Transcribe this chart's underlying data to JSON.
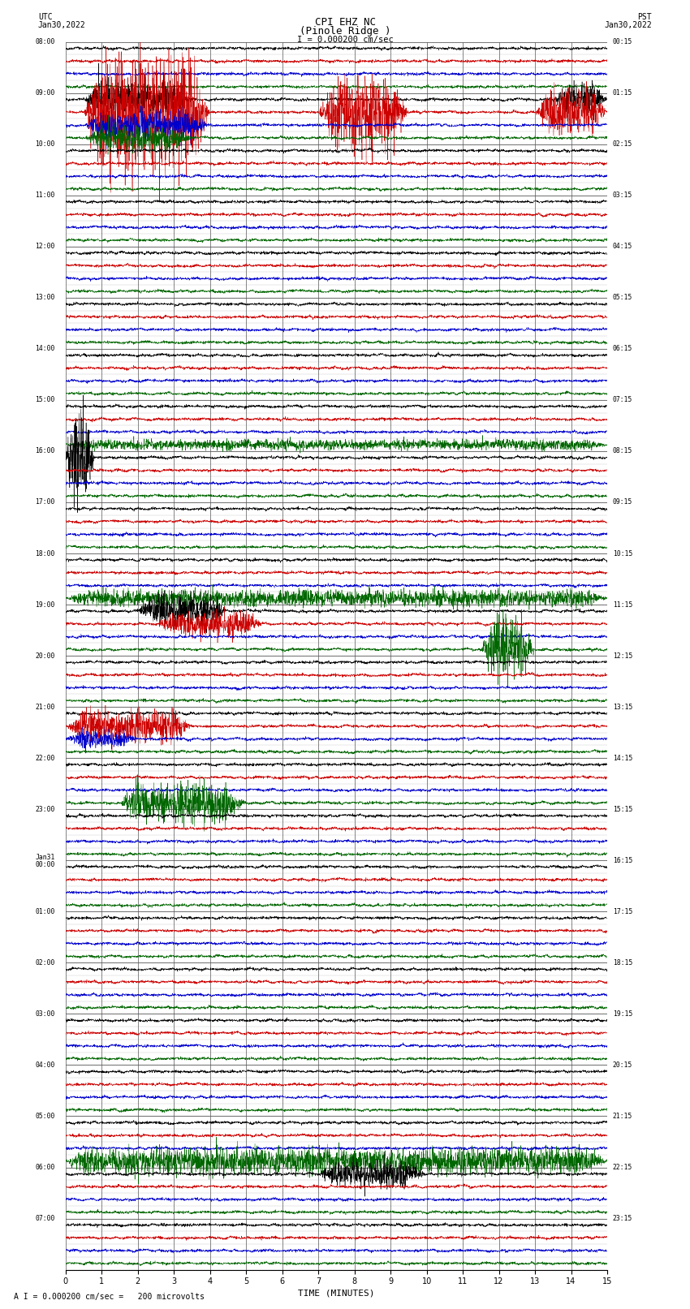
{
  "title_line1": "CPI EHZ NC",
  "title_line2": "(Pinole Ridge )",
  "scale_label": "I = 0.000200 cm/sec",
  "footer_label": "A I = 0.000200 cm/sec =   200 microvolts",
  "xlabel": "TIME (MINUTES)",
  "left_header": "UTC",
  "left_date": "Jan30,2022",
  "right_header": "PST",
  "right_date": "Jan30,2022",
  "xmin": 0,
  "xmax": 15,
  "bg_color": "#ffffff",
  "row_labels_left": [
    "08:00",
    "09:00",
    "10:00",
    "11:00",
    "12:00",
    "13:00",
    "14:00",
    "15:00",
    "16:00",
    "17:00",
    "18:00",
    "19:00",
    "20:00",
    "21:00",
    "22:00",
    "23:00",
    "Jan31\n00:00",
    "01:00",
    "02:00",
    "03:00",
    "04:00",
    "05:00",
    "06:00",
    "07:00"
  ],
  "row_labels_right": [
    "00:15",
    "01:15",
    "02:15",
    "03:15",
    "04:15",
    "05:15",
    "06:15",
    "07:15",
    "08:15",
    "09:15",
    "10:15",
    "11:15",
    "12:15",
    "13:15",
    "14:15",
    "15:15",
    "16:15",
    "17:15",
    "18:15",
    "19:15",
    "20:15",
    "21:15",
    "22:15",
    "23:15"
  ],
  "n_rows": 24,
  "traces_per_row": 4,
  "trace_colors": [
    "#000000",
    "#cc0000",
    "#0000cc",
    "#006600"
  ],
  "noise_seed": 42,
  "base_amplitude": 0.12
}
